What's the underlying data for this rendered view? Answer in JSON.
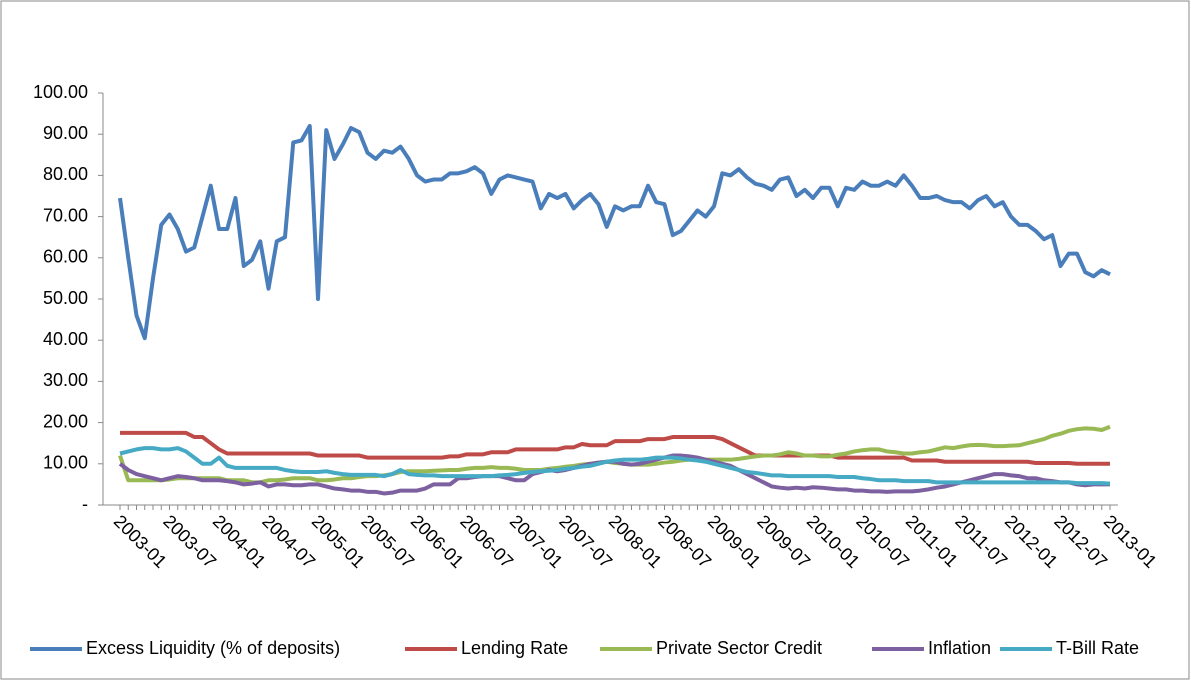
{
  "chart_data": {
    "type": "line",
    "categories": [
      "2003-01",
      null,
      null,
      null,
      null,
      null,
      "2003-07",
      null,
      null,
      null,
      null,
      null,
      "2004-01",
      null,
      null,
      null,
      null,
      null,
      "2004-07",
      null,
      null,
      null,
      null,
      null,
      "2005-01",
      null,
      null,
      null,
      null,
      null,
      "2005-07",
      null,
      null,
      null,
      null,
      null,
      "2006-01",
      null,
      null,
      null,
      null,
      null,
      "2006-07",
      null,
      null,
      null,
      null,
      null,
      "2007-01",
      null,
      null,
      null,
      null,
      null,
      "2007-07",
      null,
      null,
      null,
      null,
      null,
      "2008-01",
      null,
      null,
      null,
      null,
      null,
      "2008-07",
      null,
      null,
      null,
      null,
      null,
      "2009-01",
      null,
      null,
      null,
      null,
      null,
      "2009-07",
      null,
      null,
      null,
      null,
      null,
      "2010-01",
      null,
      null,
      null,
      null,
      null,
      "2010-07",
      null,
      null,
      null,
      null,
      null,
      "2011-01",
      null,
      null,
      null,
      null,
      null,
      "2011-07",
      null,
      null,
      null,
      null,
      null,
      "2012-01",
      null,
      null,
      null,
      null,
      null,
      "2012-07",
      null,
      null,
      null,
      null,
      null,
      "2013-01"
    ],
    "series": [
      {
        "name": "Excess Liquidity (% of deposits)",
        "color": "#4a7ebb",
        "values": [
          74.5,
          60,
          46,
          40.5,
          55,
          68,
          70.5,
          67,
          61.5,
          62.5,
          70,
          77.5,
          67,
          67,
          74.5,
          58,
          59.5,
          64,
          52.5,
          64,
          65,
          88,
          88.5,
          92,
          50,
          91,
          84,
          87.5,
          91.5,
          90.5,
          85.5,
          84,
          86,
          85.5,
          87,
          84,
          80,
          78.5,
          79,
          79,
          80.5,
          80.5,
          81,
          82,
          80.5,
          75.5,
          79,
          80,
          79.5,
          79,
          78.5,
          72,
          75.5,
          74.5,
          75.5,
          72,
          74,
          75.5,
          73,
          67.5,
          72.5,
          71.5,
          72.5,
          72.5,
          77.5,
          73.5,
          73,
          65.5,
          66.5,
          69,
          71.5,
          70,
          72.5,
          80.5,
          80,
          81.5,
          79.5,
          78,
          77.5,
          76.5,
          79,
          79.5,
          75,
          76.5,
          74.5,
          77,
          77,
          72.5,
          77,
          76.5,
          78.5,
          77.5,
          77.5,
          78.5,
          77.5,
          80,
          77.5,
          74.5,
          74.5,
          75,
          74,
          73.5,
          73.5,
          72,
          74,
          75,
          72.5,
          73.5,
          70,
          68,
          68,
          66.5,
          64.5,
          65.5,
          58,
          61,
          61,
          56.5,
          55.5,
          57,
          56
        ]
      },
      {
        "name": "Lending Rate",
        "color": "#be4b48",
        "values": [
          17.5,
          17.5,
          17.5,
          17.5,
          17.5,
          17.5,
          17.5,
          17.5,
          17.5,
          16.5,
          16.5,
          15,
          13.5,
          12.5,
          12.5,
          12.5,
          12.5,
          12.5,
          12.5,
          12.5,
          12.5,
          12.5,
          12.5,
          12.5,
          12,
          12,
          12,
          12,
          12,
          12,
          11.5,
          11.5,
          11.5,
          11.5,
          11.5,
          11.5,
          11.5,
          11.5,
          11.5,
          11.5,
          11.8,
          11.8,
          12.3,
          12.3,
          12.3,
          12.8,
          12.8,
          12.8,
          13.5,
          13.5,
          13.5,
          13.5,
          13.5,
          13.5,
          14,
          14,
          14.8,
          14.5,
          14.5,
          14.5,
          15.5,
          15.5,
          15.5,
          15.5,
          16,
          16,
          16,
          16.5,
          16.5,
          16.5,
          16.5,
          16.5,
          16.5,
          16,
          15,
          14,
          13,
          12,
          12,
          12,
          12,
          12,
          12,
          12,
          12,
          12,
          12,
          11.5,
          11.5,
          11.5,
          11.5,
          11.5,
          11.5,
          11.5,
          11.5,
          11.5,
          10.8,
          10.8,
          10.8,
          10.8,
          10.5,
          10.5,
          10.5,
          10.5,
          10.5,
          10.5,
          10.5,
          10.5,
          10.5,
          10.5,
          10.5,
          10.2,
          10.2,
          10.2,
          10.2,
          10.2,
          10,
          10,
          10,
          10,
          10
        ]
      },
      {
        "name": "Private Sector Credit",
        "color": "#98b954",
        "values": [
          12,
          6,
          6,
          6,
          6,
          6,
          6.2,
          6.5,
          6.5,
          6.5,
          6.5,
          6.5,
          6.5,
          6,
          6,
          6,
          5.5,
          5.5,
          6,
          6,
          6.2,
          6.5,
          6.5,
          6.5,
          6,
          6,
          6.2,
          6.5,
          6.5,
          6.8,
          7,
          7,
          7.2,
          7.5,
          8,
          8.2,
          8.2,
          8.2,
          8.3,
          8.4,
          8.5,
          8.5,
          8.8,
          9,
          9,
          9.2,
          9,
          9,
          8.8,
          8.5,
          8.5,
          8.5,
          8.8,
          9,
          9.3,
          9.5,
          9.8,
          10,
          10.3,
          10.5,
          10.2,
          10,
          9.8,
          9.8,
          9.8,
          10,
          10.3,
          10.5,
          10.8,
          11,
          11,
          11,
          11,
          11,
          11,
          11.2,
          11.5,
          11.8,
          12,
          12,
          12.3,
          12.8,
          12.5,
          12,
          12,
          11.8,
          11.8,
          12.2,
          12.5,
          13,
          13.3,
          13.5,
          13.5,
          13,
          12.8,
          12.5,
          12.5,
          12.8,
          13,
          13.5,
          14,
          13.8,
          14.2,
          14.5,
          14.6,
          14.5,
          14.3,
          14.3,
          14.4,
          14.5,
          15,
          15.5,
          16,
          16.8,
          17.3,
          18,
          18.4,
          18.6,
          18.5,
          18.2,
          19
        ]
      },
      {
        "name": "Inflation",
        "color": "#7d60a0",
        "values": [
          10,
          8.5,
          7.5,
          7,
          6.5,
          6,
          6.5,
          7,
          6.8,
          6.5,
          6,
          6,
          6,
          5.8,
          5.5,
          5,
          5.2,
          5.5,
          4.5,
          5,
          5,
          4.8,
          4.8,
          5,
          5,
          4.5,
          4,
          3.8,
          3.5,
          3.5,
          3.2,
          3.2,
          2.8,
          3,
          3.5,
          3.5,
          3.5,
          4,
          5,
          5,
          5,
          6.5,
          6.5,
          6.8,
          7,
          7,
          7,
          6.5,
          6,
          6,
          7.5,
          8,
          8.5,
          8.2,
          8.5,
          9,
          9.5,
          10,
          10.3,
          10.5,
          10.5,
          10,
          9.8,
          10,
          10.5,
          11,
          11.5,
          12,
          12,
          11.8,
          11.5,
          11,
          10.5,
          10,
          9.5,
          8.5,
          7.5,
          6.5,
          5.5,
          4.5,
          4.2,
          4,
          4.2,
          4,
          4.3,
          4.2,
          4,
          3.8,
          3.8,
          3.5,
          3.5,
          3.3,
          3.3,
          3.2,
          3.3,
          3.3,
          3.3,
          3.5,
          3.8,
          4.2,
          4.5,
          5,
          5.5,
          6,
          6.5,
          7,
          7.5,
          7.5,
          7.2,
          7,
          6.5,
          6.5,
          6,
          5.8,
          5.5,
          5.5,
          5,
          4.8,
          5,
          5,
          5
        ]
      },
      {
        "name": "T-Bill Rate",
        "color": "#46aac5",
        "values": [
          12.5,
          13,
          13.5,
          13.8,
          13.8,
          13.5,
          13.5,
          13.8,
          13,
          11.5,
          10,
          10,
          11.5,
          9.5,
          9,
          9,
          9,
          9,
          9,
          9,
          8.5,
          8.2,
          8,
          8,
          8,
          8.2,
          7.8,
          7.5,
          7.3,
          7.3,
          7.3,
          7.3,
          7,
          7.5,
          8.5,
          7.5,
          7.3,
          7.2,
          7.2,
          7,
          7,
          7,
          7,
          7,
          7,
          7,
          7.2,
          7.3,
          7.5,
          7.8,
          8,
          8.2,
          8.3,
          8.5,
          8.8,
          9,
          9.3,
          9.5,
          10,
          10.5,
          10.8,
          11,
          11,
          11,
          11.2,
          11.5,
          11.5,
          11.5,
          11.3,
          11,
          10.8,
          10.5,
          10,
          9.5,
          9,
          8.5,
          8,
          7.8,
          7.5,
          7.2,
          7.2,
          7,
          7,
          7,
          7,
          7,
          7,
          6.8,
          6.8,
          6.8,
          6.5,
          6.3,
          6,
          6,
          6,
          5.8,
          5.8,
          5.8,
          5.8,
          5.5,
          5.5,
          5.5,
          5.5,
          5.5,
          5.5,
          5.5,
          5.5,
          5.5,
          5.5,
          5.5,
          5.5,
          5.5,
          5.5,
          5.5,
          5.5,
          5.5,
          5.3,
          5.3,
          5.3,
          5.3,
          5.2
        ]
      }
    ],
    "ylim": [
      0,
      100
    ],
    "yticks": [
      {
        "value": 0,
        "label": "-"
      },
      {
        "value": 10,
        "label": "10.00"
      },
      {
        "value": 20,
        "label": "20.00"
      },
      {
        "value": 30,
        "label": "30.00"
      },
      {
        "value": 40,
        "label": "40.00"
      },
      {
        "value": 50,
        "label": "50.00"
      },
      {
        "value": 60,
        "label": "60.00"
      },
      {
        "value": 70,
        "label": "70.00"
      },
      {
        "value": 80,
        "label": "80.00"
      },
      {
        "value": 90,
        "label": "90.00"
      },
      {
        "value": 100,
        "label": "100.00"
      }
    ],
    "grid": false,
    "legend": "bottom"
  }
}
